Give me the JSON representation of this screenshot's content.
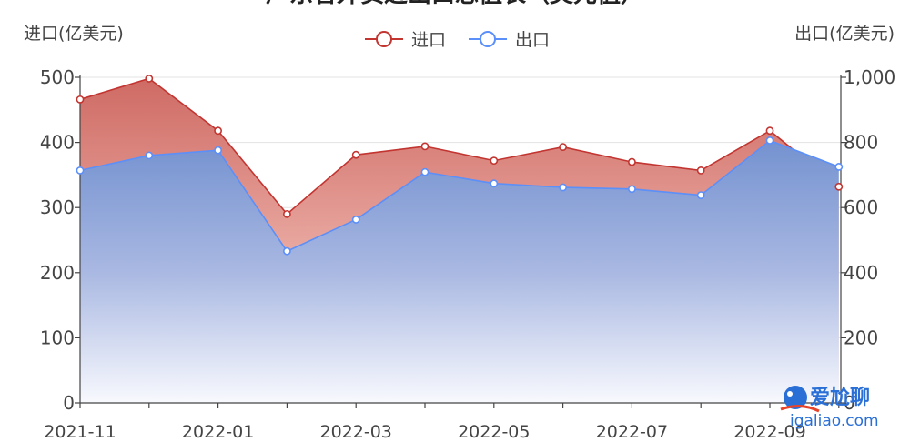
{
  "chart_data": {
    "type": "area",
    "title": "广东省外贸进出口总值表（美元值）",
    "categories": [
      "2021-11",
      "2021-12",
      "2022-01",
      "2022-02",
      "2022-03",
      "2022-04",
      "2022-05",
      "2022-06",
      "2022-07",
      "2022-08",
      "2022-09",
      "2022-10"
    ],
    "x_tick_labels": [
      "2021-11",
      "2022-01",
      "2022-03",
      "2022-05",
      "2022-07",
      "2022-09"
    ],
    "y_left": {
      "label": "进口(亿美元)",
      "ylim": [
        0,
        500
      ],
      "ticks": [
        "0",
        "100",
        "200",
        "300",
        "400",
        "500"
      ]
    },
    "y_right": {
      "label": "出口(亿美元)",
      "ylim": [
        0,
        1000
      ],
      "ticks": [
        "0",
        "200",
        "400",
        "600",
        "800",
        "1,000"
      ]
    },
    "grid": true,
    "legend_position": "top-center",
    "series": [
      {
        "name": "进口",
        "axis": "left",
        "color": "#c23531",
        "values": [
          466,
          498,
          418,
          290,
          381,
          394,
          372,
          393,
          370,
          357,
          418,
          332
        ]
      },
      {
        "name": "出口",
        "axis": "right",
        "color": "#5b8ff9",
        "values": [
          714,
          760,
          776,
          466,
          563,
          709,
          674,
          662,
          657,
          638,
          806,
          725
        ]
      }
    ]
  },
  "watermark": {
    "name": "爱尬聊",
    "url": "igaliao.com"
  }
}
